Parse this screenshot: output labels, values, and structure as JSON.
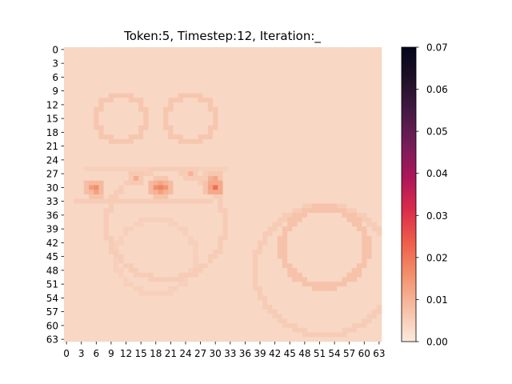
{
  "chart_data": {
    "type": "heatmap",
    "title": "Token:5, Timestep:12, Iteration:_",
    "xlabel": "",
    "ylabel": "",
    "grid": false,
    "n_rows": 64,
    "n_cols": 64,
    "x_tick_labels": [
      "0",
      "3",
      "6",
      "9",
      "12",
      "15",
      "18",
      "21",
      "24",
      "27",
      "30",
      "33",
      "36",
      "39",
      "42",
      "45",
      "48",
      "51",
      "54",
      "57",
      "60",
      "63"
    ],
    "y_tick_labels": [
      "0",
      "3",
      "6",
      "9",
      "12",
      "15",
      "18",
      "21",
      "24",
      "27",
      "30",
      "33",
      "36",
      "39",
      "42",
      "45",
      "48",
      "51",
      "54",
      "57",
      "60",
      "63"
    ],
    "colorbar": {
      "vmin": 0.0,
      "vmax": 0.07,
      "tick_values": [
        0.0,
        0.01,
        0.02,
        0.03,
        0.04,
        0.05,
        0.06,
        0.07
      ],
      "tick_labels": [
        "0.00",
        "0.01",
        "0.02",
        "0.03",
        "0.04",
        "0.05",
        "0.06",
        "0.07"
      ],
      "colormap": "rocket_r",
      "colormap_stops": [
        "#faebdd",
        "#f6bfa6",
        "#f3926d",
        "#ef5f4b",
        "#dc2d4a",
        "#ad1759",
        "#761d59",
        "#461a45",
        "#1f1127",
        "#03051a"
      ]
    },
    "background_value": 0.0035,
    "peak_cells": [
      {
        "row": 30,
        "col": 5,
        "value": 0.014
      },
      {
        "row": 30,
        "col": 6,
        "value": 0.016
      },
      {
        "row": 31,
        "col": 6,
        "value": 0.013
      },
      {
        "row": 30,
        "col": 18,
        "value": 0.016
      },
      {
        "row": 30,
        "col": 19,
        "value": 0.018
      },
      {
        "row": 30,
        "col": 20,
        "value": 0.015
      },
      {
        "row": 31,
        "col": 19,
        "value": 0.013
      },
      {
        "row": 29,
        "col": 19,
        "value": 0.012
      },
      {
        "row": 30,
        "col": 30,
        "value": 0.021
      },
      {
        "row": 30,
        "col": 29,
        "value": 0.013
      },
      {
        "row": 28,
        "col": 30,
        "value": 0.012
      },
      {
        "row": 28,
        "col": 29,
        "value": 0.01
      },
      {
        "row": 28,
        "col": 14,
        "value": 0.011
      },
      {
        "row": 27,
        "col": 25,
        "value": 0.01
      }
    ]
  }
}
